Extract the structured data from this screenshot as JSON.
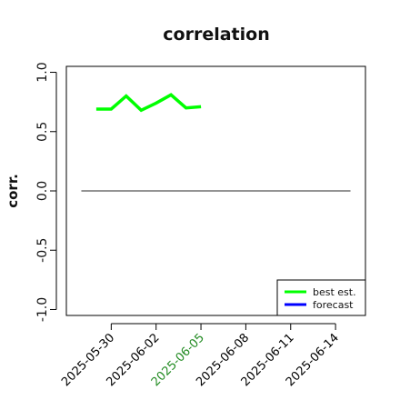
{
  "chart_data": {
    "type": "line",
    "title": "correlation",
    "ylabel": "corr.",
    "xlabel": "",
    "ylim": [
      -1.05,
      1.05
    ],
    "yticks": [
      -1.0,
      -0.5,
      0.0,
      0.5,
      1.0
    ],
    "ytick_labels": [
      "-1.0",
      "-0.5",
      "0.0",
      "0.5",
      "1.0"
    ],
    "xlim": [
      "2025-05-27",
      "2025-06-16"
    ],
    "xticks": [
      "2025-05-30",
      "2025-06-02",
      "2025-06-05",
      "2025-06-08",
      "2025-06-11",
      "2025-06-14"
    ],
    "xtick_labels": [
      "2025-05-30",
      "2025-06-02",
      "2025-06-05",
      "2025-06-08",
      "2025-06-11",
      "2025-06-14"
    ],
    "xtick_colors": [
      "#000000",
      "#000000",
      "#228B22",
      "#000000",
      "#000000",
      "#000000"
    ],
    "reference_line": {
      "y": 0,
      "x_from": "2025-05-28",
      "x_to": "2025-06-15",
      "color": "#555555"
    },
    "series": [
      {
        "name": "best est.",
        "color": "#00ff00",
        "x": [
          "2025-05-29",
          "2025-05-30",
          "2025-05-31",
          "2025-06-01",
          "2025-06-02",
          "2025-06-03",
          "2025-06-04",
          "2025-06-05"
        ],
        "values": [
          0.69,
          0.69,
          0.8,
          0.68,
          0.74,
          0.81,
          0.7,
          0.71
        ]
      },
      {
        "name": "forecast",
        "color": "#0000ff",
        "x": [],
        "values": []
      }
    ],
    "grid": false,
    "legend_position": "bottom-right"
  }
}
